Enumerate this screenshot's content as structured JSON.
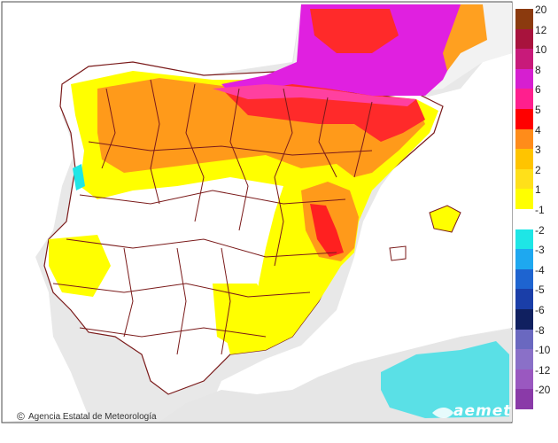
{
  "legend": {
    "entries": [
      {
        "label": "20",
        "color": "#8b3a0e"
      },
      {
        "label": "12",
        "color": "#a8133d"
      },
      {
        "label": "10",
        "color": "#c81a7a"
      },
      {
        "label": "8",
        "color": "#d61fd0"
      },
      {
        "label": "6",
        "color": "#ff1f8e"
      },
      {
        "label": "5",
        "color": "#ff0000"
      },
      {
        "label": "4",
        "color": "#ff8c1a"
      },
      {
        "label": "3",
        "color": "#ffc400"
      },
      {
        "label": "2",
        "color": "#ffe01a"
      },
      {
        "label": "1",
        "color": "#ffff00"
      },
      {
        "label": "-1",
        "color": "#ffffff"
      },
      {
        "label": "-2",
        "color": "#1ee6e6"
      },
      {
        "label": "-3",
        "color": "#1ea8f0"
      },
      {
        "label": "-4",
        "color": "#1e64d0"
      },
      {
        "label": "-5",
        "color": "#1a3ea8"
      },
      {
        "label": "-6",
        "color": "#102060"
      },
      {
        "label": "-8",
        "color": "#6a68c0"
      },
      {
        "label": "-10",
        "color": "#8a70c8"
      },
      {
        "label": "-12",
        "color": "#9a58c0"
      },
      {
        "label": "-20",
        "color": "#8a3aa8"
      }
    ]
  },
  "credit": {
    "icon": "copyright-icon",
    "text": "Agencia Estatal de Meteorología"
  },
  "logo": {
    "text": "aemet"
  },
  "colors": {
    "land_gray": "#e3e3e3",
    "sea": "#ffffff",
    "border": "#7a1a1a"
  }
}
